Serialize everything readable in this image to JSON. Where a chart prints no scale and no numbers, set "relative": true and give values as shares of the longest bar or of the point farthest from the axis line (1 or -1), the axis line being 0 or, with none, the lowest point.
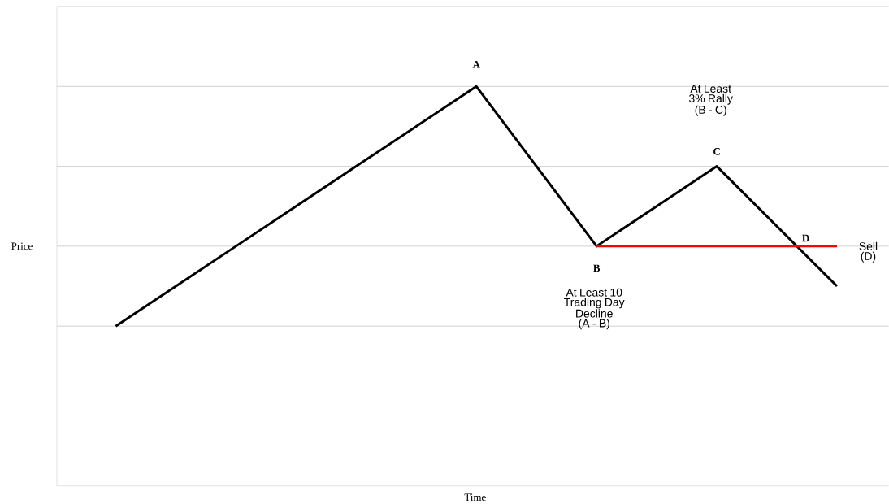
{
  "chart_data": {
    "type": "line",
    "relative": true,
    "xlabel": "Time",
    "ylabel": "Price",
    "grid": "y",
    "marker": "none",
    "line_style": "solid",
    "categories": [
      null,
      null,
      null,
      null,
      null,
      null,
      null
    ],
    "series": [
      {
        "color": "#000000",
        "values": [
          0.4,
          0.6,
          0.8,
          1,
          0.6,
          0.8,
          0.5
        ]
      },
      {
        "color": "#ff0000",
        "values": [
          null,
          null,
          null,
          null,
          0.6,
          0.6,
          0.6
        ]
      }
    ],
    "annotations": [
      "A",
      "B",
      "C",
      "D",
      "At Least 3% Rally (B - C)",
      "At Least 10 Trading Day Decline (A - B)",
      "Sell (D)"
    ]
  }
}
